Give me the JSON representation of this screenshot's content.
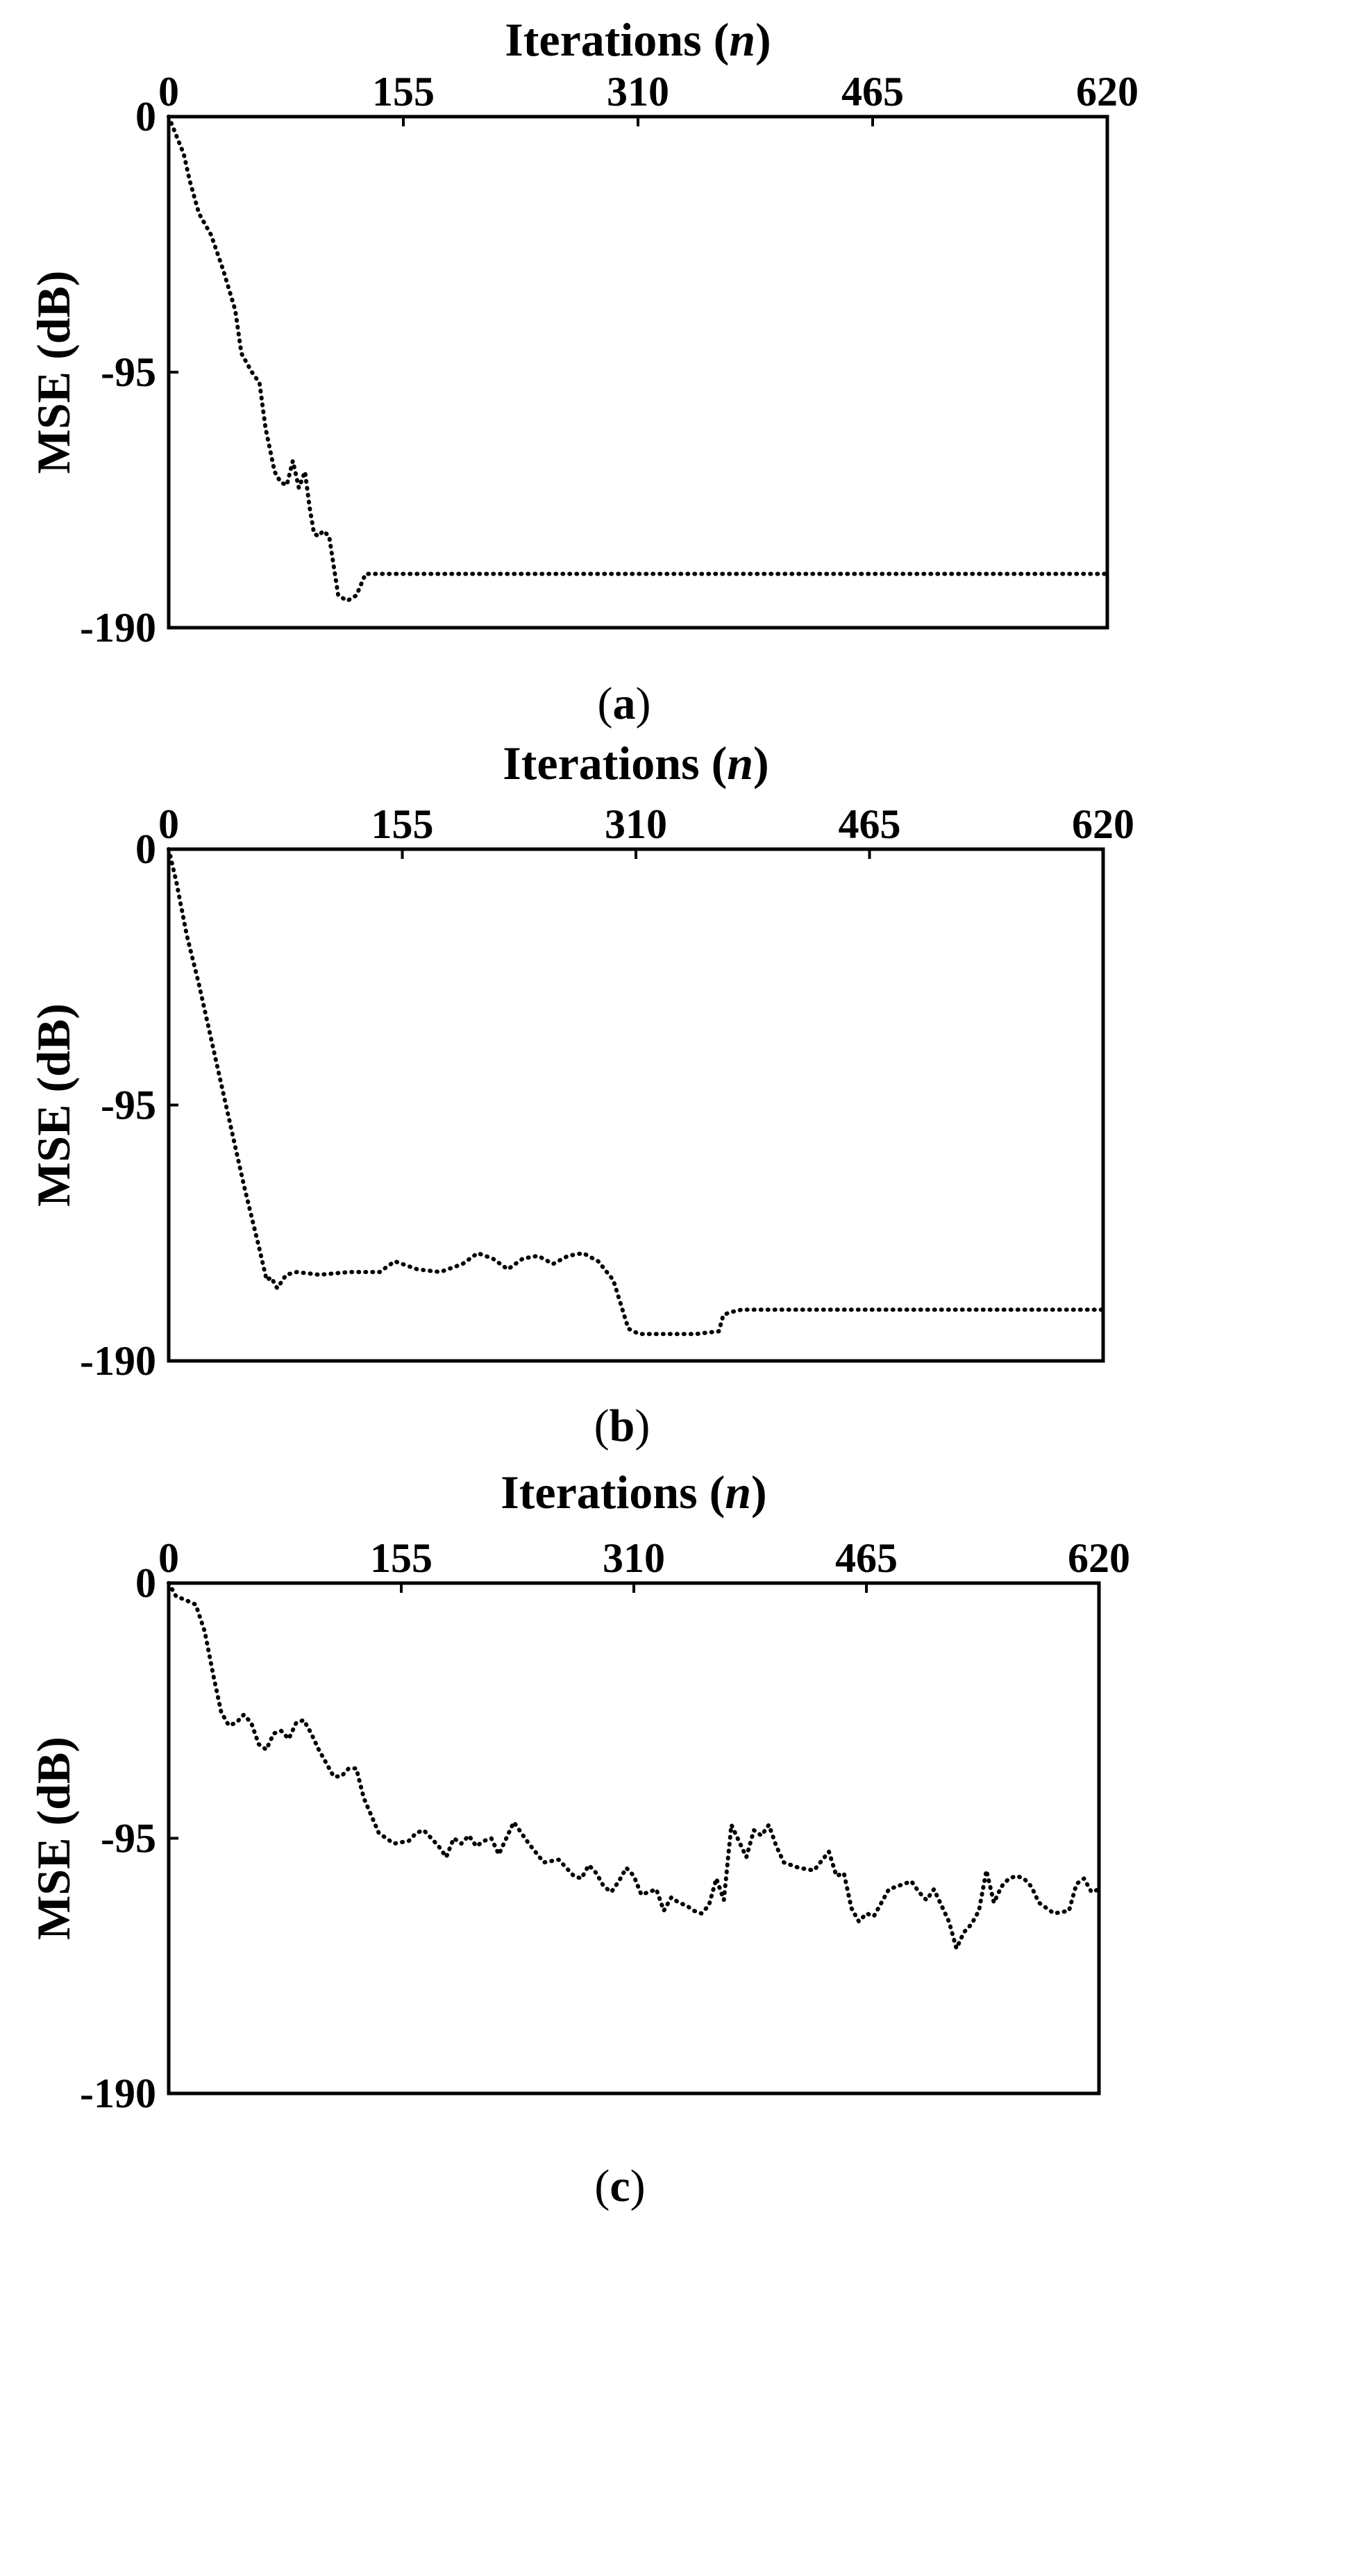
{
  "chart_data": [
    {
      "type": "line",
      "caption_letter": "a",
      "xlabel_text": "Iterations (",
      "xlabel_var": "n",
      "xlabel_close": ")",
      "ylabel": "MSE (dB)",
      "xlim": [
        0,
        620
      ],
      "ylim": [
        -190,
        0
      ],
      "x_axis_position": "top",
      "xticks": [
        0,
        155,
        310,
        465,
        620
      ],
      "xtick_labels": [
        "0",
        "155",
        "310",
        "465",
        "620"
      ],
      "yticks": [
        0,
        -95,
        -190
      ],
      "ytick_labels": [
        "0",
        "-95",
        "-190"
      ],
      "grid": false,
      "series": [
        {
          "x": [
            0,
            5,
            10,
            14,
            20,
            28,
            36,
            44,
            48,
            55,
            60,
            64,
            70,
            74,
            78,
            82,
            86,
            90,
            93,
            96,
            99,
            102,
            106,
            112,
            118,
            124,
            130,
            140,
            620
          ],
          "y": [
            0,
            -7,
            -14,
            -24,
            -36,
            -44,
            -57,
            -72,
            -88,
            -95,
            -99,
            -116,
            -132,
            -136,
            -137,
            -128,
            -138,
            -132,
            -145,
            -155,
            -156,
            -154,
            -156,
            -178,
            -180,
            -178,
            -170,
            -170,
            -170
          ]
        }
      ]
    },
    {
      "type": "line",
      "caption_letter": "b",
      "xlabel_text": "Iterations (",
      "xlabel_var": "n",
      "xlabel_close": ")",
      "ylabel": "MSE (dB)",
      "xlim": [
        0,
        620
      ],
      "ylim": [
        -190,
        0
      ],
      "x_axis_position": "top",
      "xticks": [
        0,
        155,
        310,
        465,
        620
      ],
      "xtick_labels": [
        "0",
        "155",
        "310",
        "465",
        "620"
      ],
      "yticks": [
        0,
        -95,
        -190
      ],
      "ytick_labels": [
        "0",
        "-95",
        "-190"
      ],
      "grid": false,
      "series": [
        {
          "x": [
            0,
            5,
            12,
            20,
            30,
            40,
            50,
            60,
            65,
            68,
            72,
            78,
            85,
            100,
            120,
            140,
            150,
            155,
            165,
            180,
            195,
            205,
            215,
            225,
            235,
            245,
            255,
            265,
            275,
            285,
            295,
            305,
            312,
            330,
            350,
            365,
            368,
            372,
            380,
            400,
            450,
            520,
            620
          ],
          "y": [
            0,
            -12,
            -32,
            -50,
            -75,
            -100,
            -125,
            -148,
            -160,
            -159,
            -163,
            -158,
            -157,
            -158,
            -157,
            -157,
            -153,
            -154,
            -156,
            -157,
            -154,
            -150,
            -152,
            -156,
            -152,
            -151,
            -154,
            -151,
            -150,
            -153,
            -160,
            -178,
            -180,
            -180,
            -180,
            -179,
            -173,
            -172,
            -171,
            -171,
            -171,
            -171,
            -171
          ]
        }
      ]
    },
    {
      "type": "line",
      "caption_letter": "c",
      "xlabel_text": "Iterations (",
      "xlabel_var": "n",
      "xlabel_close": ")",
      "ylabel": "MSE (dB)",
      "xlim": [
        0,
        620
      ],
      "ylim": [
        -190,
        0
      ],
      "x_axis_position": "top",
      "xticks": [
        0,
        155,
        310,
        465,
        620
      ],
      "xtick_labels": [
        "0",
        "155",
        "310",
        "465",
        "620"
      ],
      "yticks": [
        0,
        -95,
        -190
      ],
      "ytick_labels": [
        "0",
        "-95",
        "-190"
      ],
      "grid": false,
      "series": [
        {
          "x": [
            0,
            5,
            10,
            18,
            24,
            30,
            35,
            40,
            45,
            50,
            55,
            60,
            65,
            70,
            75,
            80,
            85,
            90,
            95,
            100,
            105,
            110,
            115,
            120,
            125,
            130,
            140,
            150,
            160,
            165,
            170,
            175,
            180,
            185,
            190,
            195,
            200,
            205,
            210,
            215,
            220,
            230,
            240,
            250,
            260,
            270,
            275,
            280,
            285,
            290,
            295,
            300,
            305,
            310,
            315,
            320,
            325,
            330,
            335,
            340,
            345,
            350,
            355,
            360,
            365,
            370,
            375,
            380,
            385,
            390,
            395,
            400,
            405,
            410,
            420,
            430,
            440,
            445,
            450,
            455,
            460,
            465,
            470,
            480,
            490,
            495,
            500,
            505,
            510,
            520,
            525,
            530,
            535,
            540,
            545,
            550,
            555,
            560,
            565,
            570,
            575,
            580,
            590,
            600,
            605,
            610,
            615,
            620
          ],
          "y": [
            0,
            -5,
            -6,
            -8,
            -18,
            -35,
            -48,
            -53,
            -52,
            -49,
            -52,
            -60,
            -62,
            -56,
            -55,
            -58,
            -52,
            -51,
            -56,
            -62,
            -67,
            -72,
            -72,
            -69,
            -69,
            -80,
            -93,
            -97,
            -96,
            -93,
            -92,
            -95,
            -98,
            -102,
            -95,
            -97,
            -94,
            -98,
            -96,
            -95,
            -101,
            -89,
            -97,
            -104,
            -103,
            -109,
            -110,
            -105,
            -108,
            -113,
            -115,
            -111,
            -106,
            -109,
            -116,
            -115,
            -114,
            -122,
            -117,
            -119,
            -120,
            -122,
            -123,
            -120,
            -110,
            -118,
            -90,
            -96,
            -102,
            -92,
            -94,
            -90,
            -98,
            -104,
            -106,
            -107,
            -100,
            -109,
            -108,
            -121,
            -126,
            -123,
            -124,
            -114,
            -112,
            -111,
            -115,
            -118,
            -114,
            -126,
            -136,
            -130,
            -127,
            -122,
            -107,
            -119,
            -113,
            -110,
            -109,
            -110,
            -113,
            -119,
            -123,
            -122,
            -112,
            -110,
            -115,
            -114
          ]
        }
      ]
    }
  ]
}
